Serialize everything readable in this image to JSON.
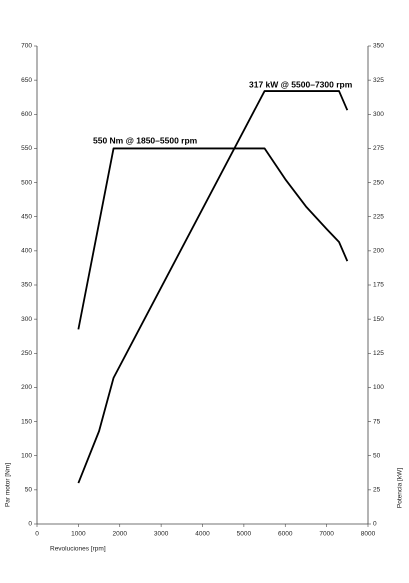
{
  "chart_data": {
    "type": "line",
    "x_label": "Revoluciones [rpm]",
    "y_label": "Par motor [Nm]",
    "y2_label": "Potencia [kW]",
    "annotations": [
      "550 Nm @ 1850–5500 rpm",
      "317 kW @ 5500–7300 rpm"
    ],
    "xlim": [
      0,
      8000
    ],
    "xticks": [
      0,
      1000,
      2000,
      3000,
      4000,
      5000,
      6000,
      7000,
      8000
    ],
    "ylim": [
      0,
      700
    ],
    "yticks": [
      0,
      50,
      100,
      150,
      200,
      250,
      300,
      350,
      400,
      450,
      500,
      550,
      600,
      650,
      700
    ],
    "y2lim": [
      0,
      350
    ],
    "y2ticks": [
      0,
      25,
      50,
      75,
      100,
      125,
      150,
      175,
      200,
      225,
      250,
      275,
      300,
      325,
      350
    ],
    "grid": false,
    "series": [
      {
        "color": "#000000",
        "x": [
          1000,
          1850,
          5500,
          6000,
          6500,
          7000,
          7300,
          7500
        ],
        "values": [
          285,
          550,
          550,
          505,
          465,
          432,
          413,
          385
        ]
      },
      {
        "color": "#000000",
        "axis": "y2",
        "x": [
          1000,
          1500,
          1850,
          5500,
          7300,
          7500
        ],
        "values": [
          30,
          68,
          107,
          317,
          317,
          303
        ]
      }
    ]
  }
}
